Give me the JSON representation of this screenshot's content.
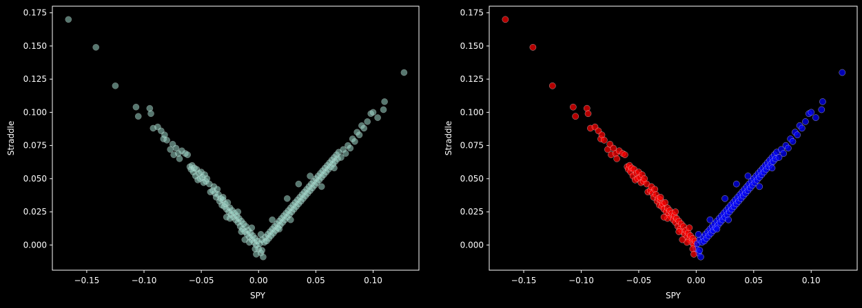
{
  "chart_data": [
    {
      "type": "scatter",
      "xlabel": "SPY",
      "ylabel": "Straddle",
      "xlim": [
        -0.18,
        0.14
      ],
      "ylim": [
        -0.019,
        0.18
      ],
      "xticks": [
        "-0.15",
        "-0.10",
        "-0.05",
        "0.00",
        "0.05",
        "0.10"
      ],
      "yticks": [
        "0.000",
        "0.025",
        "0.050",
        "0.075",
        "0.100",
        "0.125",
        "0.150",
        "0.175"
      ],
      "grid": false,
      "colors": {
        "point": "#9fd8cb",
        "edge": "#ffffff"
      }
    },
    {
      "type": "scatter",
      "xlabel": "SPY",
      "ylabel": "Straddle",
      "xlim": [
        -0.18,
        0.14
      ],
      "ylim": [
        -0.019,
        0.18
      ],
      "xticks": [
        "-0.15",
        "-0.10",
        "-0.05",
        "0.00",
        "0.05",
        "0.10"
      ],
      "yticks": [
        "0.000",
        "0.025",
        "0.050",
        "0.075",
        "0.100",
        "0.125",
        "0.150",
        "0.175"
      ],
      "grid": false,
      "colors": {
        "negative": "#ff0000",
        "positive": "#0000ff",
        "edge": "#ffffff"
      }
    }
  ],
  "points": [
    [
      -0.166,
      0.17
    ],
    [
      -0.142,
      0.149
    ],
    [
      -0.125,
      0.12
    ],
    [
      -0.107,
      0.104
    ],
    [
      -0.105,
      0.097
    ],
    [
      -0.095,
      0.103
    ],
    [
      -0.094,
      0.099
    ],
    [
      -0.092,
      0.088
    ],
    [
      -0.088,
      0.089
    ],
    [
      -0.085,
      0.086
    ],
    [
      -0.083,
      0.08
    ],
    [
      -0.082,
      0.083
    ],
    [
      -0.08,
      0.079
    ],
    [
      -0.077,
      0.072
    ],
    [
      -0.075,
      0.076
    ],
    [
      -0.074,
      0.068
    ],
    [
      -0.072,
      0.073
    ],
    [
      -0.07,
      0.069
    ],
    [
      -0.069,
      0.065
    ],
    [
      -0.067,
      0.071
    ],
    [
      -0.064,
      0.069
    ],
    [
      -0.062,
      0.068
    ],
    [
      -0.06,
      0.059
    ],
    [
      -0.059,
      0.057
    ],
    [
      -0.058,
      0.06
    ],
    [
      -0.057,
      0.055
    ],
    [
      -0.056,
      0.058
    ],
    [
      -0.055,
      0.052
    ],
    [
      -0.054,
      0.057
    ],
    [
      -0.053,
      0.049
    ],
    [
      -0.052,
      0.054
    ],
    [
      -0.051,
      0.05
    ],
    [
      -0.05,
      0.055
    ],
    [
      -0.049,
      0.051
    ],
    [
      -0.048,
      0.047
    ],
    [
      -0.047,
      0.053
    ],
    [
      -0.046,
      0.048
    ],
    [
      -0.045,
      0.05
    ],
    [
      -0.043,
      0.046
    ],
    [
      -0.042,
      0.04
    ],
    [
      -0.04,
      0.041
    ],
    [
      -0.039,
      0.044
    ],
    [
      -0.038,
      0.039
    ],
    [
      -0.037,
      0.036
    ],
    [
      -0.036,
      0.042
    ],
    [
      -0.035,
      0.038
    ],
    [
      -0.034,
      0.033
    ],
    [
      -0.033,
      0.035
    ],
    [
      -0.032,
      0.03
    ],
    [
      -0.031,
      0.034
    ],
    [
      -0.03,
      0.029
    ],
    [
      -0.029,
      0.031
    ],
    [
      -0.028,
      0.027
    ],
    [
      -0.027,
      0.032
    ],
    [
      -0.026,
      0.025
    ],
    [
      -0.025,
      0.028
    ],
    [
      -0.024,
      0.023
    ],
    [
      -0.023,
      0.026
    ],
    [
      -0.022,
      0.021
    ],
    [
      -0.021,
      0.024
    ],
    [
      -0.02,
      0.019
    ],
    [
      -0.019,
      0.022
    ],
    [
      -0.018,
      0.017
    ],
    [
      -0.017,
      0.02
    ],
    [
      -0.016,
      0.014
    ],
    [
      -0.015,
      0.018
    ],
    [
      -0.014,
      0.012
    ],
    [
      -0.013,
      0.016
    ],
    [
      -0.012,
      0.01
    ],
    [
      -0.011,
      0.014
    ],
    [
      -0.01,
      0.008
    ],
    [
      -0.009,
      0.011
    ],
    [
      -0.008,
      0.006
    ],
    [
      -0.007,
      0.009
    ],
    [
      -0.006,
      0.004
    ],
    [
      -0.005,
      0.007
    ],
    [
      -0.004,
      0.002
    ],
    [
      -0.003,
      0.005
    ],
    [
      -0.002,
      0.0
    ],
    [
      -0.001,
      0.003
    ],
    [
      0.0,
      -0.003
    ],
    [
      0.001,
      0.001
    ],
    [
      0.002,
      -0.006
    ],
    [
      0.003,
      0.004
    ],
    [
      0.004,
      -0.009
    ],
    [
      0.005,
      0.002
    ],
    [
      0.006,
      0.006
    ],
    [
      0.007,
      0.003
    ],
    [
      0.008,
      0.008
    ],
    [
      0.009,
      0.005
    ],
    [
      0.01,
      0.01
    ],
    [
      0.011,
      0.007
    ],
    [
      0.012,
      0.012
    ],
    [
      0.013,
      0.009
    ],
    [
      0.014,
      0.014
    ],
    [
      0.015,
      0.011
    ],
    [
      0.016,
      0.016
    ],
    [
      0.017,
      0.013
    ],
    [
      0.018,
      0.018
    ],
    [
      0.019,
      0.015
    ],
    [
      0.02,
      0.02
    ],
    [
      0.021,
      0.017
    ],
    [
      0.022,
      0.022
    ],
    [
      0.023,
      0.019
    ],
    [
      0.024,
      0.024
    ],
    [
      0.025,
      0.021
    ],
    [
      0.026,
      0.026
    ],
    [
      0.027,
      0.023
    ],
    [
      0.028,
      0.028
    ],
    [
      0.029,
      0.025
    ],
    [
      0.03,
      0.03
    ],
    [
      0.031,
      0.027
    ],
    [
      0.032,
      0.032
    ],
    [
      0.033,
      0.029
    ],
    [
      0.034,
      0.034
    ],
    [
      0.035,
      0.031
    ],
    [
      0.036,
      0.036
    ],
    [
      0.037,
      0.033
    ],
    [
      0.038,
      0.038
    ],
    [
      0.039,
      0.035
    ],
    [
      0.04,
      0.04
    ],
    [
      0.041,
      0.037
    ],
    [
      0.042,
      0.042
    ],
    [
      0.043,
      0.039
    ],
    [
      0.044,
      0.044
    ],
    [
      0.045,
      0.041
    ],
    [
      0.046,
      0.046
    ],
    [
      0.047,
      0.043
    ],
    [
      0.048,
      0.048
    ],
    [
      0.049,
      0.045
    ],
    [
      0.05,
      0.05
    ],
    [
      0.051,
      0.047
    ],
    [
      0.052,
      0.052
    ],
    [
      0.053,
      0.049
    ],
    [
      0.054,
      0.054
    ],
    [
      0.055,
      0.051
    ],
    [
      0.056,
      0.056
    ],
    [
      0.057,
      0.053
    ],
    [
      0.058,
      0.058
    ],
    [
      0.059,
      0.055
    ],
    [
      0.06,
      0.06
    ],
    [
      0.061,
      0.057
    ],
    [
      0.062,
      0.062
    ],
    [
      0.063,
      0.059
    ],
    [
      0.064,
      0.064
    ],
    [
      0.065,
      0.061
    ],
    [
      0.066,
      0.066
    ],
    [
      0.067,
      0.063
    ],
    [
      0.068,
      0.068
    ],
    [
      0.069,
      0.065
    ],
    [
      0.07,
      0.07
    ],
    [
      0.072,
      0.066
    ],
    [
      0.074,
      0.072
    ],
    [
      0.076,
      0.069
    ],
    [
      0.078,
      0.075
    ],
    [
      0.08,
      0.073
    ],
    [
      0.082,
      0.08
    ],
    [
      0.084,
      0.078
    ],
    [
      0.086,
      0.085
    ],
    [
      0.088,
      0.083
    ],
    [
      0.09,
      0.09
    ],
    [
      0.092,
      0.088
    ],
    [
      0.095,
      0.093
    ],
    [
      0.098,
      0.099
    ],
    [
      0.1,
      0.1
    ],
    [
      0.104,
      0.096
    ],
    [
      0.109,
      0.102
    ],
    [
      0.11,
      0.108
    ],
    [
      0.127,
      0.13
    ],
    [
      -0.015,
      0.01
    ],
    [
      -0.025,
      0.02
    ],
    [
      -0.008,
      0.002
    ],
    [
      -0.012,
      0.004
    ],
    [
      -0.003,
      -0.003
    ],
    [
      -0.002,
      -0.007
    ],
    [
      0.003,
      -0.004
    ],
    [
      0.002,
      0.008
    ],
    [
      -0.006,
      0.013
    ],
    [
      -0.018,
      0.025
    ],
    [
      -0.028,
      0.021
    ],
    [
      -0.031,
      0.036
    ],
    [
      0.012,
      0.019
    ],
    [
      0.018,
      0.012
    ],
    [
      0.025,
      0.035
    ],
    [
      0.028,
      0.019
    ],
    [
      0.035,
      0.046
    ],
    [
      0.045,
      0.052
    ],
    [
      0.055,
      0.044
    ],
    [
      0.066,
      0.058
    ]
  ]
}
